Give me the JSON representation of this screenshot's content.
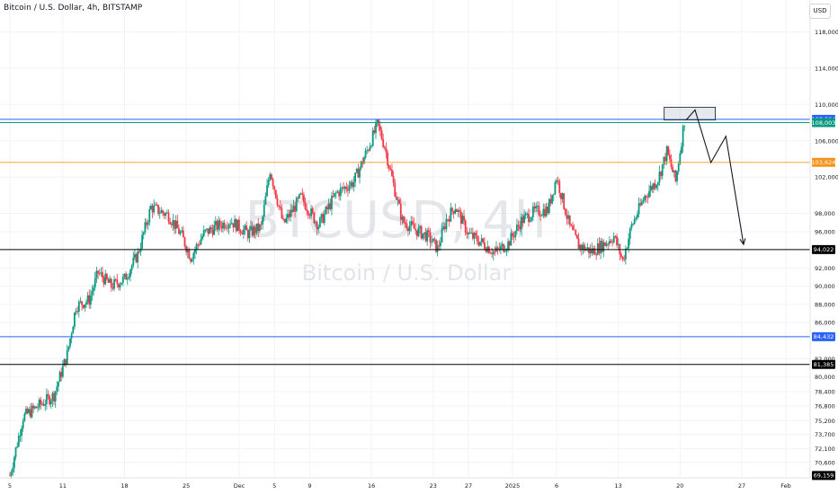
{
  "header": {
    "title": "Bitcoin / U.S. Dollar, 4h, BITSTAMP",
    "currency_button": "USD"
  },
  "watermark": {
    "symbol": "BTCUSD, 4h",
    "name": "Bitcoin / U.S. Dollar"
  },
  "chart_data": {
    "type": "candlestick",
    "title": "Bitcoin / U.S. Dollar, 4h, BITSTAMP",
    "ylim": [
      68900,
      121500
    ],
    "y_ticks": [
      {
        "label": "118,000",
        "value": 118000
      },
      {
        "label": "114,000",
        "value": 114000
      },
      {
        "label": "110,000",
        "value": 110000
      },
      {
        "label": "106,000",
        "value": 106000
      },
      {
        "label": "102,000",
        "value": 102000
      },
      {
        "label": "98,000",
        "value": 98000
      },
      {
        "label": "96,000",
        "value": 96000
      },
      {
        "label": "92,000",
        "value": 92000
      },
      {
        "label": "90,000",
        "value": 90000
      },
      {
        "label": "88,000",
        "value": 88000
      },
      {
        "label": "86,000",
        "value": 86000
      },
      {
        "label": "82,000",
        "value": 82000
      },
      {
        "label": "80,000",
        "value": 80000
      },
      {
        "label": "78,400",
        "value": 78400
      },
      {
        "label": "76,800",
        "value": 76800
      },
      {
        "label": "75,200",
        "value": 75200
      },
      {
        "label": "73,700",
        "value": 73700
      },
      {
        "label": "72,100",
        "value": 72100
      },
      {
        "label": "70,600",
        "value": 70600
      }
    ],
    "x_ticks": [
      {
        "label": "5",
        "day": 0
      },
      {
        "label": "11",
        "day": 6
      },
      {
        "label": "18",
        "day": 13
      },
      {
        "label": "25",
        "day": 20
      },
      {
        "label": "Dec",
        "day": 26
      },
      {
        "label": "5",
        "day": 30
      },
      {
        "label": "9",
        "day": 34
      },
      {
        "label": "16",
        "day": 41
      },
      {
        "label": "23",
        "day": 48
      },
      {
        "label": "27",
        "day": 52
      },
      {
        "label": "2025",
        "day": 57
      },
      {
        "label": "6",
        "day": 62
      },
      {
        "label": "13",
        "day": 69
      },
      {
        "label": "20",
        "day": 76
      },
      {
        "label": "27",
        "day": 83
      },
      {
        "label": "Feb",
        "day": 88
      }
    ],
    "x_range": [
      0,
      91
    ],
    "price_path": [
      [
        0,
        69159
      ],
      [
        1.5,
        75600
      ],
      [
        3.5,
        77000
      ],
      [
        5,
        78000
      ],
      [
        6.5,
        82500
      ],
      [
        7.5,
        87800
      ],
      [
        9,
        88500
      ],
      [
        10,
        91500
      ],
      [
        11.5,
        90000
      ],
      [
        13,
        90800
      ],
      [
        14.5,
        93500
      ],
      [
        16,
        98700
      ],
      [
        18,
        97800
      ],
      [
        19.5,
        95500
      ],
      [
        20.5,
        93200
      ],
      [
        22,
        95800
      ],
      [
        23.5,
        96600
      ],
      [
        25,
        97200
      ],
      [
        27,
        95800
      ],
      [
        28.5,
        96500
      ],
      [
        29.5,
        102800
      ],
      [
        31,
        96800
      ],
      [
        33,
        99800
      ],
      [
        35,
        96700
      ],
      [
        37,
        100200
      ],
      [
        39,
        101500
      ],
      [
        40.5,
        104900
      ],
      [
        41.7,
        107800
      ],
      [
        42.5,
        105400
      ],
      [
        43.5,
        101200
      ],
      [
        44.5,
        97200
      ],
      [
        46,
        96200
      ],
      [
        47.5,
        95400
      ],
      [
        48.5,
        94100
      ],
      [
        49.5,
        97300
      ],
      [
        50.5,
        98800
      ],
      [
        52,
        95700
      ],
      [
        53.5,
        94800
      ],
      [
        55,
        93700
      ],
      [
        56.5,
        94700
      ],
      [
        58,
        97200
      ],
      [
        59.5,
        98200
      ],
      [
        61,
        98400
      ],
      [
        62,
        102000
      ],
      [
        63.5,
        96500
      ],
      [
        64.5,
        94500
      ],
      [
        66,
        93800
      ],
      [
        67.5,
        94700
      ],
      [
        68.5,
        95500
      ],
      [
        69.5,
        92800
      ],
      [
        70.5,
        96600
      ],
      [
        72,
        99900
      ],
      [
        73.5,
        101800
      ],
      [
        74.5,
        104800
      ],
      [
        75.5,
        101500
      ],
      [
        76.5,
        108300
      ]
    ],
    "levels": [
      {
        "label": "108,364",
        "value": 108364,
        "color": "#2962ff"
      },
      {
        "label": "108,003",
        "value": 108003,
        "color": "#089981"
      },
      {
        "label": "103,624",
        "value": 103624,
        "color": "#f7931a"
      },
      {
        "label": "94,022",
        "value": 94022,
        "color": "#000000"
      },
      {
        "label": "84,432",
        "value": 84432,
        "color": "#2962ff"
      },
      {
        "label": "81,385",
        "value": 81385,
        "color": "#000000"
      },
      {
        "label": "69,159",
        "value": 69159,
        "color": "#000000"
      }
    ],
    "resistance_zone": {
      "day_start": 74.2,
      "day_end": 80,
      "value_low": 108300,
      "value_high": 109700
    },
    "projection": [
      [
        76.7,
        108300
      ],
      [
        77.7,
        109400
      ],
      [
        79.5,
        103600
      ],
      [
        81.2,
        106500
      ],
      [
        83.2,
        94600
      ]
    ],
    "colors": {
      "up": "#089981",
      "down": "#f23645"
    }
  }
}
